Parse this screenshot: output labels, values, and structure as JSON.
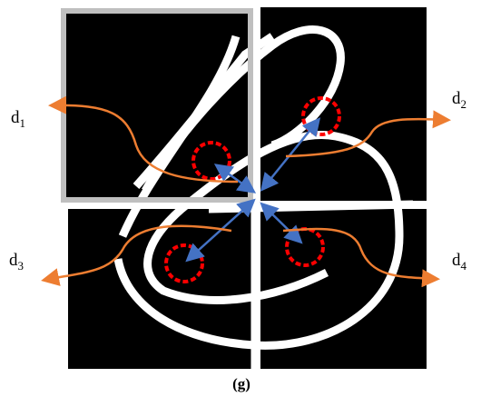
{
  "labels": [
    {
      "letter": "d",
      "index": "1"
    },
    {
      "letter": "d",
      "index": "2"
    },
    {
      "letter": "d",
      "index": "3"
    },
    {
      "letter": "d",
      "index": "4"
    }
  ],
  "caption": "(g)"
}
